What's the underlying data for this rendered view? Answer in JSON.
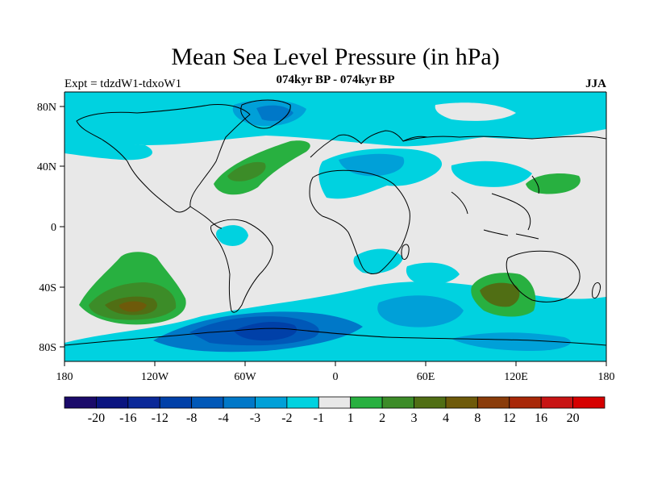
{
  "title": "Mean Sea Level Pressure (in hPa)",
  "subtitle": "074kyr BP - 074kyr BP",
  "left_label": "Expt = tdzdW1-tdxoW1",
  "season": "JJA",
  "map": {
    "lon_range": [
      -180,
      180
    ],
    "lat_range": [
      -90,
      90
    ],
    "x_tick_labels": [
      "180",
      "120W",
      "60W",
      "0",
      "60E",
      "120E",
      "180"
    ],
    "y_tick_labels": [
      "80N",
      "40N",
      "0",
      "40S",
      "80S"
    ],
    "land_fill": "#e8e8e8",
    "coastline_color": "#000000",
    "anomaly_regions": [
      {
        "name": "arctic-blue",
        "level": "-2 to -1",
        "color": "#00d2e0"
      },
      {
        "name": "greenland-dark-blue",
        "level": "-3 to -2",
        "color": "#0078c8"
      },
      {
        "name": "north-atlantic-green",
        "level": "1 to 3",
        "color": "#28b040"
      },
      {
        "name": "mediterranean-blue",
        "level": "-3 to -1",
        "color": "#00a0d8"
      },
      {
        "name": "northwest-pacific-green",
        "level": "1 to 2",
        "color": "#28b040"
      },
      {
        "name": "south-pacific-green",
        "level": "1 to 4",
        "color": "#28b040"
      },
      {
        "name": "indian-ocean-green",
        "level": "1 to 4",
        "color": "#28b040"
      },
      {
        "name": "southern-ocean-blue",
        "level": "-8 to -1",
        "color": "#0050b0"
      }
    ]
  },
  "colorbar": {
    "labels": [
      "-20",
      "-16",
      "-12",
      "-8",
      "-4",
      "-3",
      "-2",
      "-1",
      "1",
      "2",
      "3",
      "4",
      "8",
      "12",
      "16",
      "20"
    ],
    "colors": [
      "#1a0a6a",
      "#0a1480",
      "#0a2898",
      "#0040a8",
      "#0058b8",
      "#0078c8",
      "#00a0d8",
      "#00d2e0",
      "#e8e8e8",
      "#28b040",
      "#3c8c28",
      "#506e14",
      "#6e5a0a",
      "#8a3c0a",
      "#a82808",
      "#c81414",
      "#d60000"
    ]
  }
}
